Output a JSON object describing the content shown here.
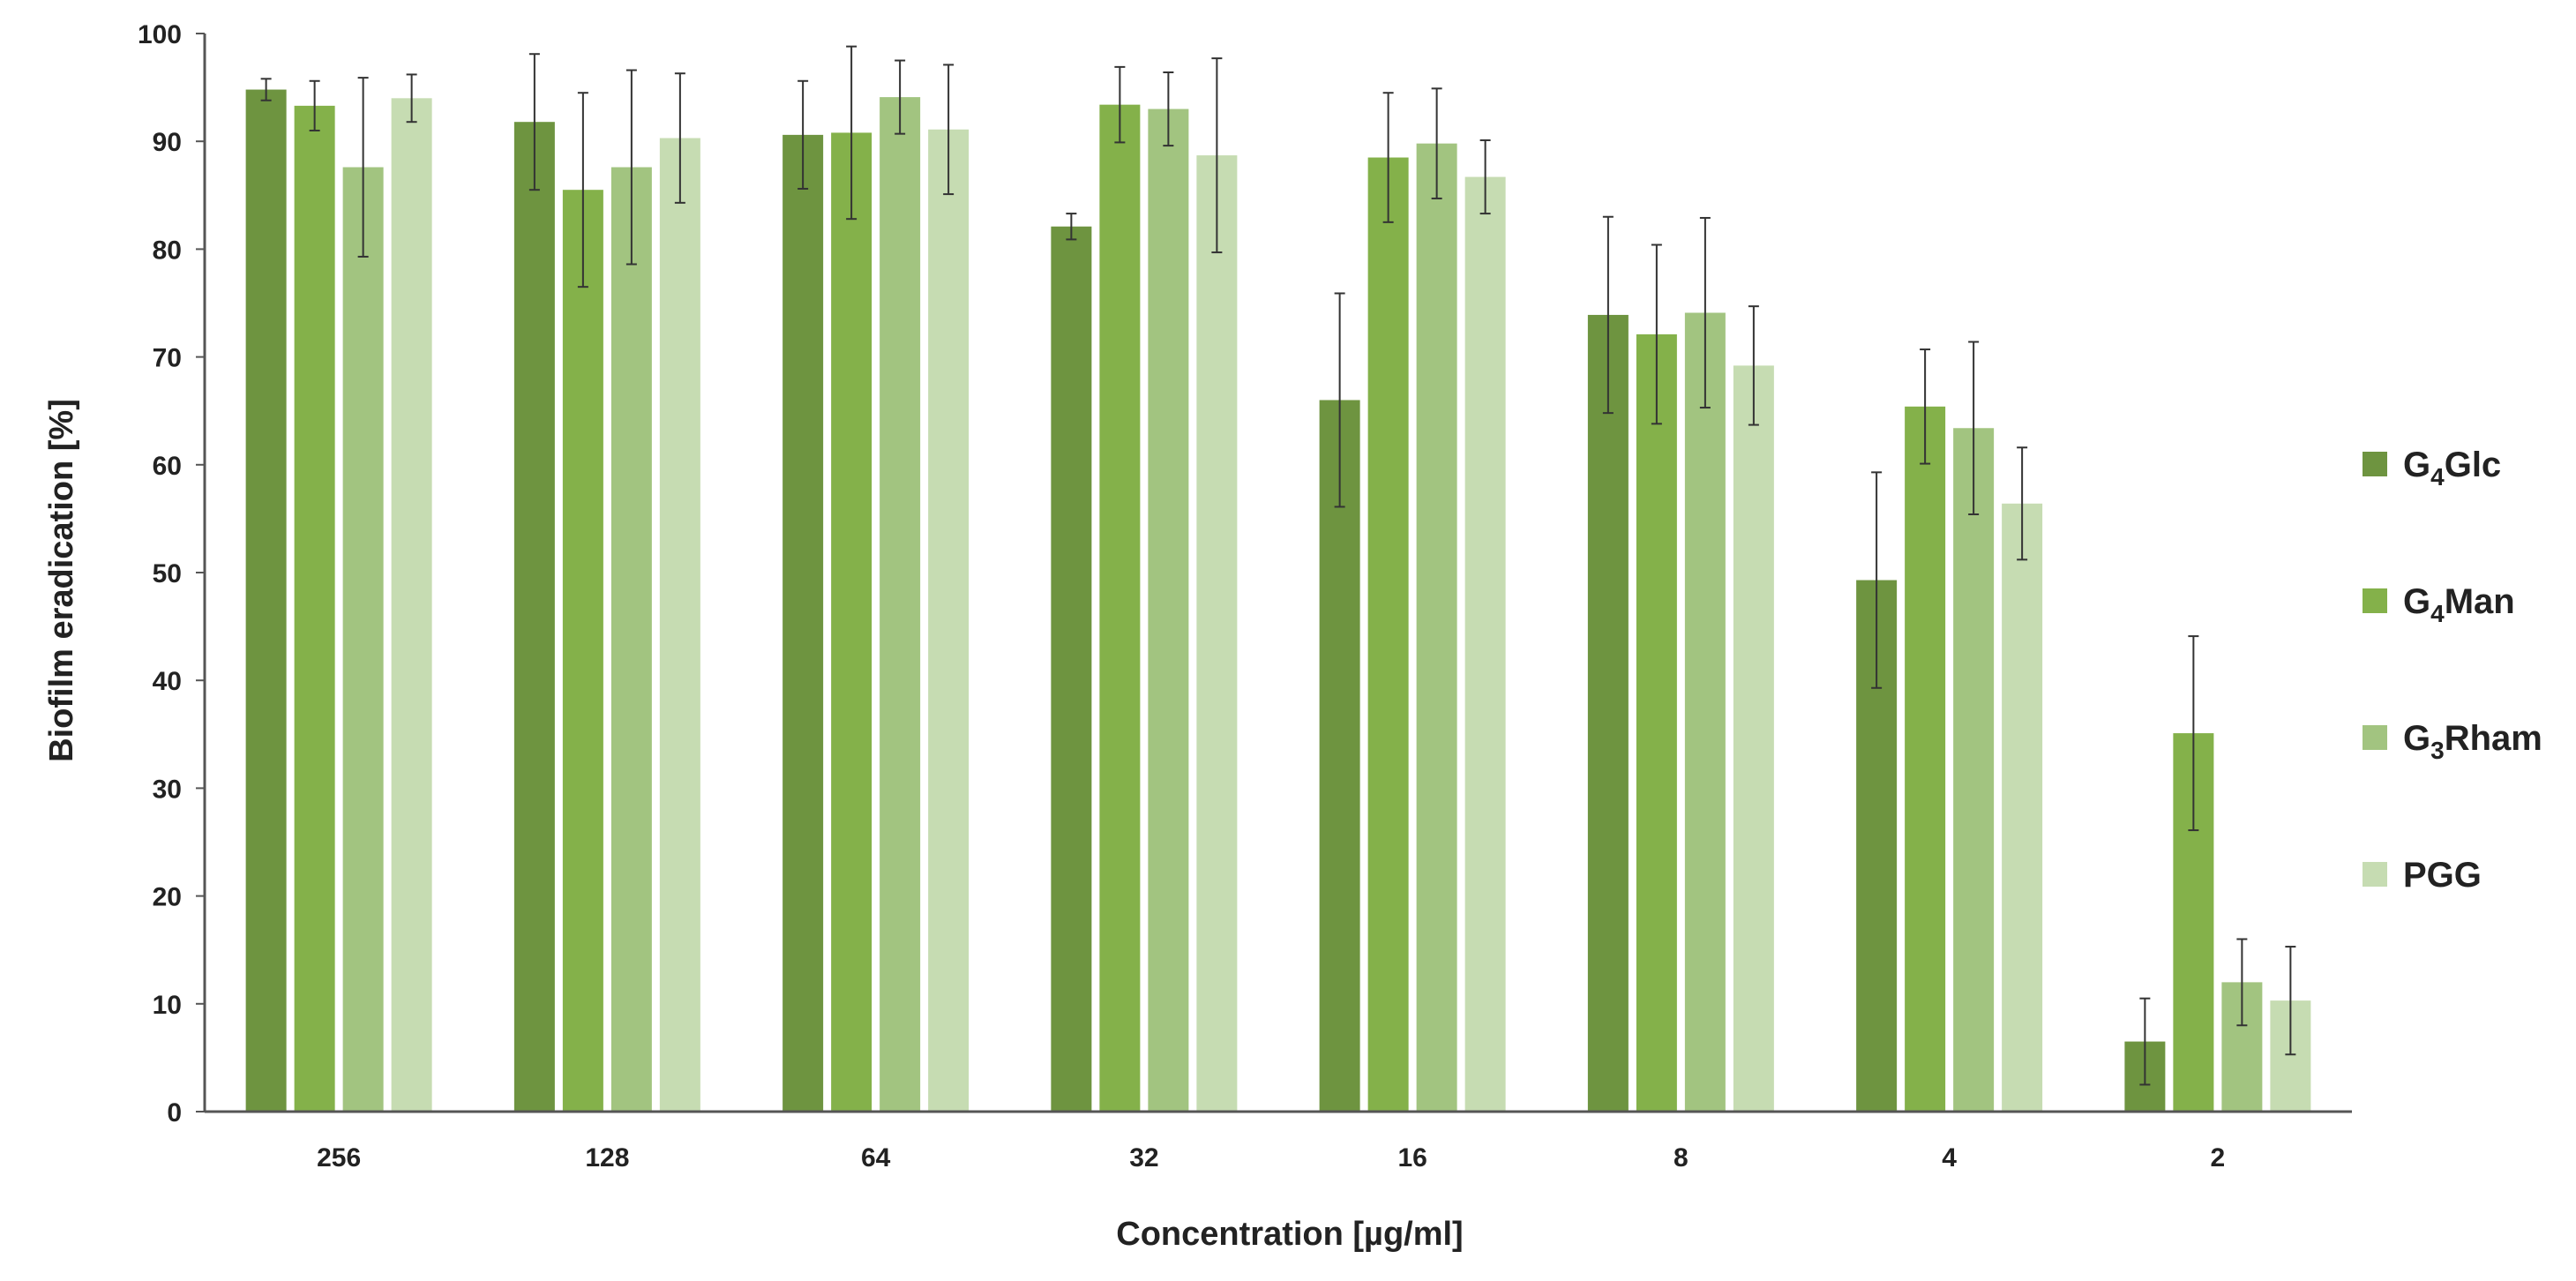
{
  "chart_data": {
    "type": "bar",
    "xlabel": "Concentration [µg/ml]",
    "ylabel": "Biofilm eradication [%]",
    "ylim": [
      0,
      100
    ],
    "yticks": [
      0,
      10,
      20,
      30,
      40,
      50,
      60,
      70,
      80,
      90,
      100
    ],
    "grid": false,
    "legend_position": "right",
    "categories": [
      "256",
      "128",
      "64",
      "32",
      "16",
      "8",
      "4",
      "2"
    ],
    "series": [
      {
        "name": "G4Glc",
        "name_main": "G",
        "name_sub": "4",
        "name_rest": "Glc",
        "color": "#6e9440",
        "values": [
          94.8,
          91.8,
          90.6,
          82.1,
          66.0,
          73.9,
          49.3,
          6.5
        ],
        "errors": [
          1.0,
          6.3,
          5.0,
          1.2,
          9.9,
          9.1,
          10.0,
          4.0
        ]
      },
      {
        "name": "G4Man",
        "name_main": "G",
        "name_sub": "4",
        "name_rest": "Man",
        "color": "#84b14a",
        "values": [
          93.3,
          85.5,
          90.8,
          93.4,
          88.5,
          72.1,
          65.4,
          35.1
        ],
        "errors": [
          2.3,
          9.0,
          8.0,
          3.5,
          6.0,
          8.3,
          5.3,
          9.0
        ]
      },
      {
        "name": "G3Rham",
        "name_main": "G",
        "name_sub": "3",
        "name_rest": "Rham",
        "color": "#a2c480",
        "values": [
          87.6,
          87.6,
          94.1,
          93.0,
          89.8,
          74.1,
          63.4,
          12.0
        ],
        "errors": [
          8.3,
          9.0,
          3.4,
          3.4,
          5.1,
          8.8,
          8.0,
          4.0
        ]
      },
      {
        "name": "PGG",
        "name_main": "PGG",
        "name_sub": "",
        "name_rest": "",
        "color": "#c6dcb2",
        "values": [
          94.0,
          90.3,
          91.1,
          88.7,
          86.7,
          69.2,
          56.4,
          10.3
        ],
        "errors": [
          2.2,
          6.0,
          6.0,
          9.0,
          3.4,
          5.5,
          5.2,
          5.0
        ]
      }
    ]
  }
}
